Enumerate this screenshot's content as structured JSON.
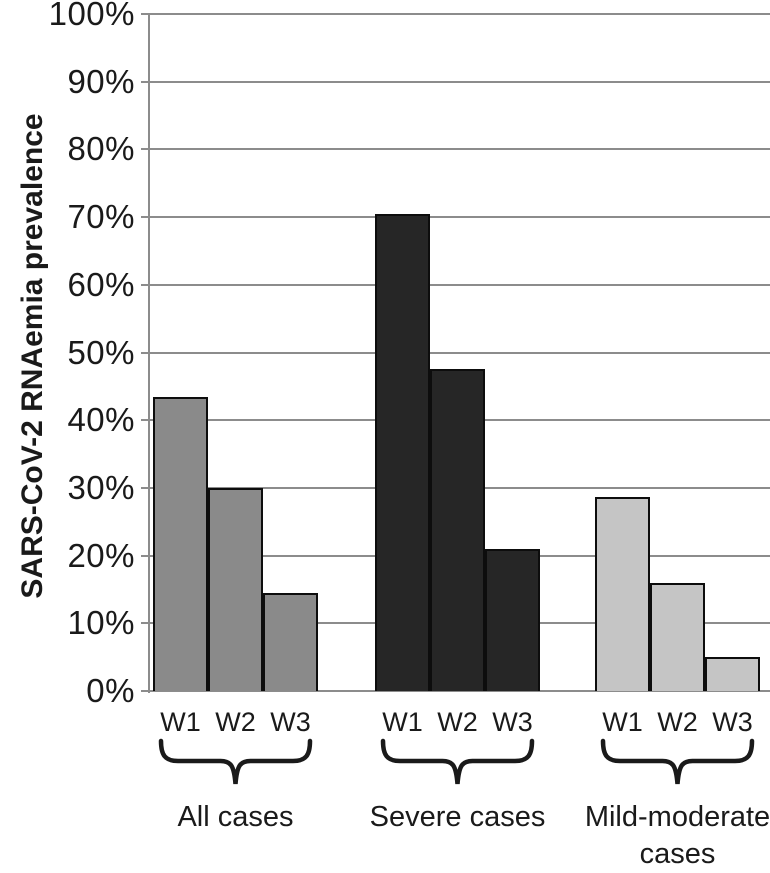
{
  "figure": {
    "background": "#ffffff"
  },
  "colors": {
    "gridline": "#8c8c8c",
    "axis": "#8c8c8c",
    "bar_outline": "#0d0d0d",
    "text": "#1a1a1a",
    "brace": "#1a1a1a"
  },
  "chart_data": {
    "type": "bar",
    "title": "",
    "xlabel": "",
    "ylabel": "SARS-CoV-2 RNAemia prevalence",
    "ylim": [
      0,
      100
    ],
    "ytick_step": 10,
    "ytick_labels": [
      "0%",
      "10%",
      "20%",
      "30%",
      "40%",
      "50%",
      "60%",
      "70%",
      "80%",
      "90%",
      "100%"
    ],
    "grid": true,
    "legend_position": "none",
    "bar_labels": [
      "W1",
      "W2",
      "W3"
    ],
    "groups": [
      {
        "label": "All cases",
        "color": "#8a8a8a",
        "bars": [
          {
            "x": "W1",
            "value": 43.5
          },
          {
            "x": "W2",
            "value": 30
          },
          {
            "x": "W3",
            "value": 14.5
          }
        ]
      },
      {
        "label": "Severe cases",
        "color": "#262626",
        "bars": [
          {
            "x": "W1",
            "value": 70.5
          },
          {
            "x": "W2",
            "value": 47.5
          },
          {
            "x": "W3",
            "value": 21
          }
        ]
      },
      {
        "label": "Mild-moderate cases",
        "color": "#c5c5c5",
        "bars": [
          {
            "x": "W1",
            "value": 28.7
          },
          {
            "x": "W2",
            "value": 16
          },
          {
            "x": "W3",
            "value": 5
          }
        ]
      }
    ]
  }
}
